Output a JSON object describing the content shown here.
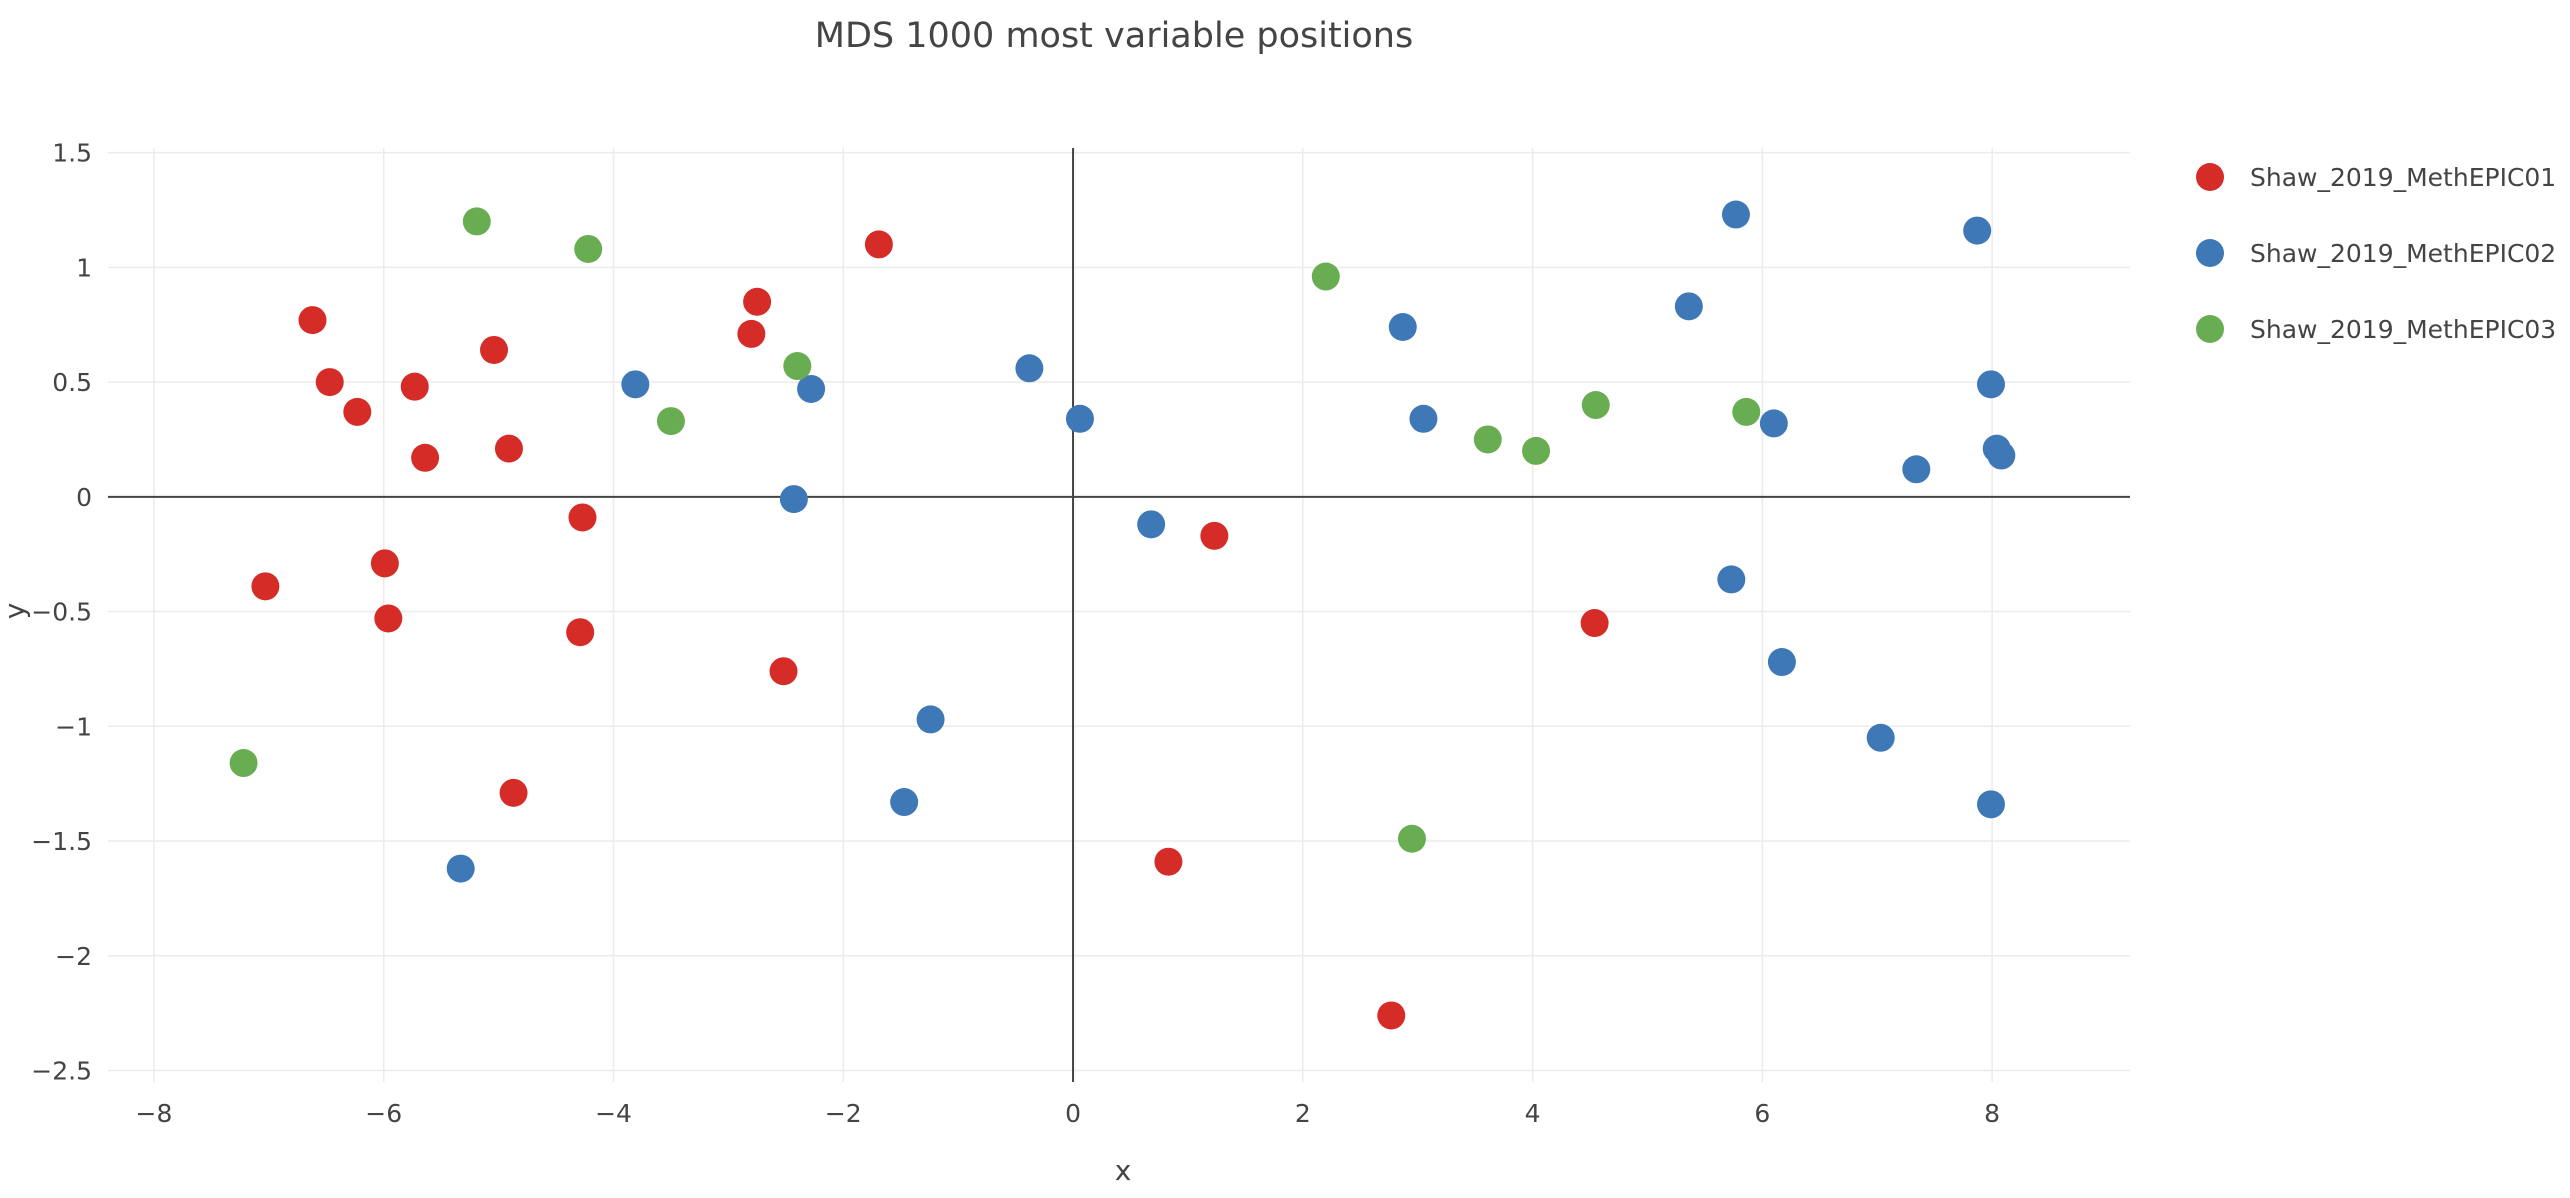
{
  "chart_data": {
    "type": "scatter",
    "title": "MDS 1000 most variable positions",
    "xlabel": "x",
    "ylabel": "y",
    "xlim": [
      -8.4,
      9.2
    ],
    "ylim": [
      -2.55,
      1.52
    ],
    "x_ticks": [
      -8,
      -6,
      -4,
      -2,
      0,
      2,
      4,
      6,
      8
    ],
    "x_tick_labels": [
      "−8",
      "−6",
      "−4",
      "−2",
      "0",
      "2",
      "4",
      "6",
      "8"
    ],
    "y_ticks": [
      -2.5,
      -2,
      -1.5,
      -1,
      -0.5,
      0,
      0.5,
      1,
      1.5
    ],
    "y_tick_labels": [
      "−2.5",
      "−2",
      "−1.5",
      "−1",
      "−0.5",
      "0",
      "0.5",
      "1",
      "1.5"
    ],
    "grid": true,
    "zero_lines": true,
    "legend_position": "top-right",
    "series": [
      {
        "name": "Shaw_2019_MethEPIC01",
        "color": "#d62c28",
        "points": [
          [
            -6.62,
            0.77
          ],
          [
            -6.47,
            0.5
          ],
          [
            -6.23,
            0.37
          ],
          [
            -5.73,
            0.48
          ],
          [
            -5.64,
            0.17
          ],
          [
            -5.04,
            0.64
          ],
          [
            -4.91,
            0.21
          ],
          [
            -4.27,
            -0.09
          ],
          [
            -2.75,
            0.85
          ],
          [
            -2.8,
            0.71
          ],
          [
            -1.69,
            1.1
          ],
          [
            -7.03,
            -0.39
          ],
          [
            -5.99,
            -0.29
          ],
          [
            -5.96,
            -0.53
          ],
          [
            -4.29,
            -0.59
          ],
          [
            -2.52,
            -0.76
          ],
          [
            -4.87,
            -1.29
          ],
          [
            1.23,
            -0.17
          ],
          [
            0.83,
            -1.59
          ],
          [
            4.54,
            -0.55
          ],
          [
            2.77,
            -2.26
          ]
        ]
      },
      {
        "name": "Shaw_2019_MethEPIC02",
        "color": "#3f78b7",
        "points": [
          [
            -3.81,
            0.49
          ],
          [
            -2.28,
            0.47
          ],
          [
            -2.43,
            -0.01
          ],
          [
            -0.38,
            0.56
          ],
          [
            0.06,
            0.34
          ],
          [
            0.68,
            -0.12
          ],
          [
            -1.24,
            -0.97
          ],
          [
            -1.47,
            -1.33
          ],
          [
            -5.33,
            -1.62
          ],
          [
            2.87,
            0.74
          ],
          [
            3.05,
            0.34
          ],
          [
            5.36,
            0.83
          ],
          [
            5.77,
            1.23
          ],
          [
            6.1,
            0.32
          ],
          [
            7.87,
            1.16
          ],
          [
            7.99,
            0.49
          ],
          [
            8.04,
            0.21
          ],
          [
            8.08,
            0.18
          ],
          [
            7.34,
            0.12
          ],
          [
            5.73,
            -0.36
          ],
          [
            6.17,
            -0.72
          ],
          [
            7.03,
            -1.05
          ],
          [
            7.99,
            -1.34
          ]
        ]
      },
      {
        "name": "Shaw_2019_MethEPIC03",
        "color": "#69ad52",
        "points": [
          [
            -5.19,
            1.2
          ],
          [
            -4.22,
            1.08
          ],
          [
            -2.4,
            0.57
          ],
          [
            -3.5,
            0.33
          ],
          [
            -7.22,
            -1.16
          ],
          [
            2.2,
            0.96
          ],
          [
            3.61,
            0.25
          ],
          [
            4.03,
            0.2
          ],
          [
            4.55,
            0.4
          ],
          [
            5.86,
            0.37
          ],
          [
            2.95,
            -1.49
          ]
        ]
      }
    ]
  }
}
